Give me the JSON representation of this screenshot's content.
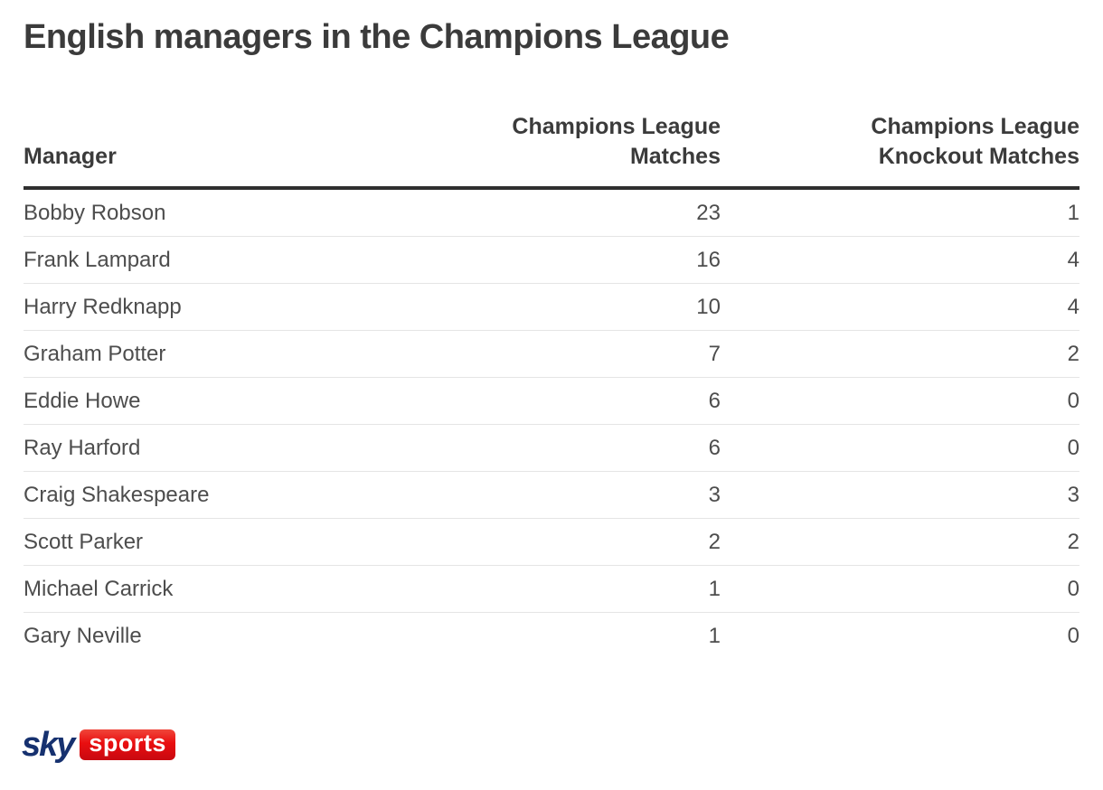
{
  "title": "English managers in the Champions League",
  "chart_data": {
    "type": "table",
    "title": "English managers in the Champions League",
    "columns": [
      "Manager",
      "Champions League Matches",
      "Champions League Knockout Matches"
    ],
    "rows": [
      [
        "Bobby Robson",
        23,
        1
      ],
      [
        "Frank Lampard",
        16,
        4
      ],
      [
        "Harry Redknapp",
        10,
        4
      ],
      [
        "Graham Potter",
        7,
        2
      ],
      [
        "Eddie Howe",
        6,
        0
      ],
      [
        "Ray Harford",
        6,
        0
      ],
      [
        "Craig Shakespeare",
        3,
        3
      ],
      [
        "Scott Parker",
        2,
        2
      ],
      [
        "Michael Carrick",
        1,
        0
      ],
      [
        "Gary Neville",
        1,
        0
      ]
    ]
  },
  "table": {
    "header": {
      "manager": "Manager",
      "cl_line1": "Champions League",
      "cl_line2": "Matches",
      "ko_line1": "Champions League",
      "ko_line2": "Knockout Matches"
    },
    "rows": [
      {
        "manager": "Bobby Robson",
        "cl": "23",
        "ko": "1"
      },
      {
        "manager": "Frank Lampard",
        "cl": "16",
        "ko": "4"
      },
      {
        "manager": "Harry Redknapp",
        "cl": "10",
        "ko": "4"
      },
      {
        "manager": "Graham Potter",
        "cl": "7",
        "ko": "2"
      },
      {
        "manager": "Eddie Howe",
        "cl": "6",
        "ko": "0"
      },
      {
        "manager": "Ray Harford",
        "cl": "6",
        "ko": "0"
      },
      {
        "manager": "Craig Shakespeare",
        "cl": "3",
        "ko": "3"
      },
      {
        "manager": "Scott Parker",
        "cl": "2",
        "ko": "2"
      },
      {
        "manager": "Michael Carrick",
        "cl": "1",
        "ko": "0"
      },
      {
        "manager": "Gary Neville",
        "cl": "1",
        "ko": "0"
      }
    ]
  },
  "branding": {
    "sky_text": "sky",
    "sports_text": "sports",
    "sky_blue": "#16316f",
    "sports_red": "#e90e10",
    "sports_text_color": "#ffffff"
  },
  "colors": {
    "background": "#ffffff",
    "title_text": "#3b3b3b",
    "header_text": "#3b3b3b",
    "row_text": "#4d4d4d",
    "heavy_rule": "#2f2f2f",
    "row_divider": "#e5e5e5"
  }
}
